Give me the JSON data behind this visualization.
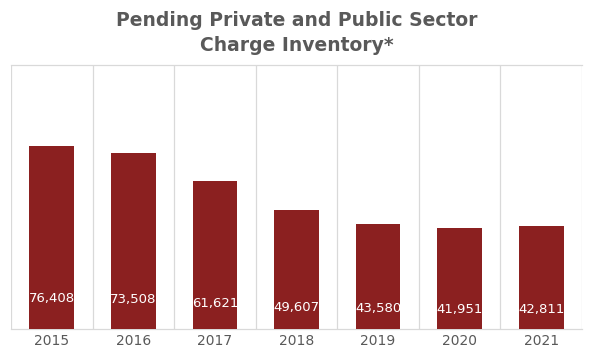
{
  "categories": [
    "2015",
    "2016",
    "2017",
    "2018",
    "2019",
    "2020",
    "2021"
  ],
  "values": [
    76408,
    73508,
    61621,
    49607,
    43580,
    41951,
    42811
  ],
  "bar_color": "#8B2020",
  "bar_labels": [
    "76,408",
    "73,508",
    "61,621",
    "49,607",
    "43,580",
    "41,951",
    "42,811"
  ],
  "title_line1": "Pending Private and Public Sector",
  "title_line2": "Charge Inventory*",
  "title_fontsize": 13.5,
  "label_fontsize": 9.5,
  "tick_fontsize": 10,
  "title_color": "#595959",
  "label_color": "#ffffff",
  "tick_color": "#595959",
  "background_color": "#ffffff",
  "ylim": [
    0,
    110000
  ],
  "bar_width": 0.55,
  "grid_color": "#d9d9d9",
  "spine_color": "#d9d9d9"
}
